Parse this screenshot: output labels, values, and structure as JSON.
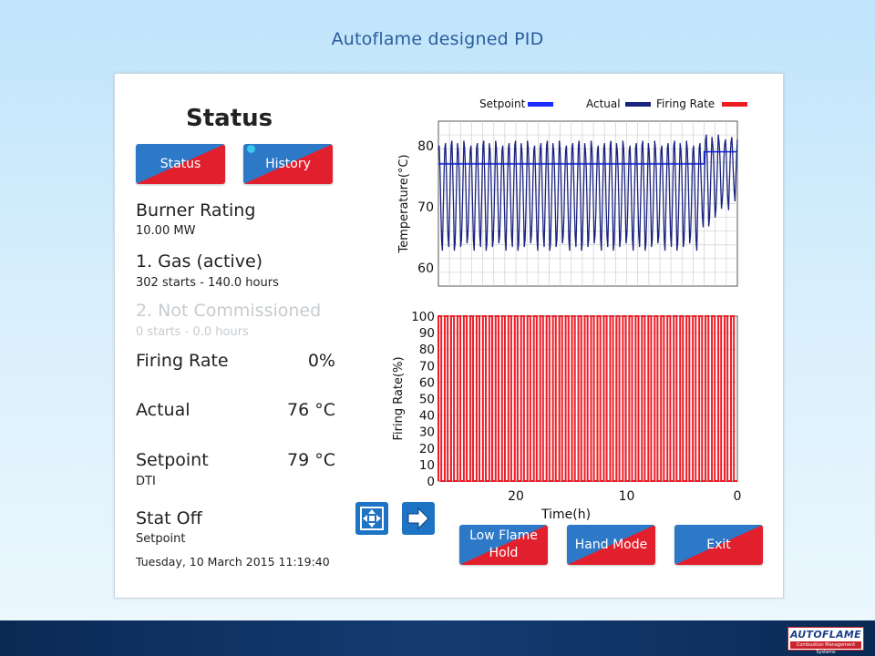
{
  "slide": {
    "title": "Autoflame designed PID"
  },
  "status": {
    "heading": "Status",
    "tabs": [
      "Status",
      "History"
    ],
    "burner_rating_label": "Burner Rating",
    "burner_rating_value": "10.00 MW",
    "fuel1_label": "1. Gas (active)",
    "fuel1_stats": "302 starts - 140.0 hours",
    "fuel2_label": "2. Not Commissioned",
    "fuel2_stats": "0 starts - 0.0 hours",
    "firing_rate_label": "Firing Rate",
    "firing_rate_value": "0%",
    "actual_label": "Actual",
    "actual_value": "76 °C",
    "setpoint_label": "Setpoint",
    "setpoint_value": "79 °C",
    "setpoint_sub": "DTI",
    "stat_label": "Stat Off",
    "stat_sub": "Setpoint",
    "datetime": "Tuesday, 10 March 2015  11:19:40"
  },
  "buttons": {
    "low_flame_line1": "Low Flame",
    "low_flame_line2": "Hold",
    "hand_mode": "Hand Mode",
    "exit": "Exit"
  },
  "icons": [
    "move-arrows-icon",
    "arrow-right-icon"
  ],
  "colors": {
    "setpoint": "#1a2cff",
    "actual": "#1a237e",
    "firing_rate": "#ee1c25",
    "button_red": "#e21f2c",
    "button_blue": "#2d79c8"
  },
  "chart_data": [
    {
      "type": "line",
      "legend": [
        {
          "name": "Setpoint",
          "color": "#1a2cff"
        },
        {
          "name": "Actual",
          "color": "#1a237e"
        },
        {
          "name": "Firing Rate",
          "color": "#ee1c25"
        }
      ],
      "legend_placement": "top",
      "ylabel": "Temperature(°C)",
      "ylim": [
        57,
        84
      ],
      "yticks": [
        60,
        70,
        80
      ],
      "xlim": [
        27,
        0
      ],
      "grid": true,
      "series": [
        {
          "name": "Setpoint",
          "values": [
            77,
            77,
            77,
            77,
            79,
            79,
            79
          ],
          "x": [
            27,
            20,
            10,
            3,
            3,
            1,
            0
          ]
        },
        {
          "name": "Actual",
          "cycles": 47,
          "high": 81,
          "low": 64,
          "trend_end": {
            "high": 82,
            "low": 67
          }
        }
      ]
    },
    {
      "type": "line",
      "ylabel": "Firing Rate(%)",
      "xlabel": "Time(h)",
      "ylim": [
        0,
        100
      ],
      "yticks": [
        0,
        10,
        20,
        30,
        40,
        50,
        60,
        70,
        80,
        90,
        100
      ],
      "xticks": [
        20,
        10,
        0
      ],
      "xlim": [
        27,
        0
      ],
      "grid": true,
      "series": [
        {
          "name": "Firing Rate",
          "cycles": 47,
          "high": 100,
          "low": 0
        }
      ]
    }
  ]
}
